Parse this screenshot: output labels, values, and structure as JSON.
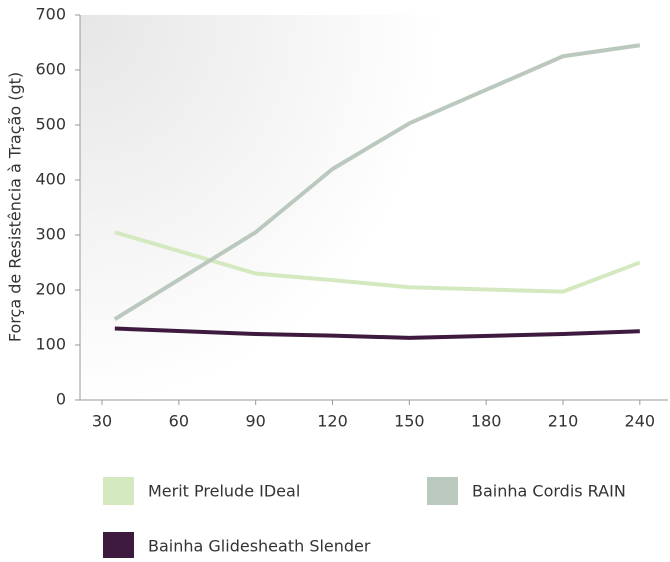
{
  "chart_data": {
    "type": "line",
    "y_label": "Força de Resistência à Tração (gt)",
    "x": [
      35,
      90,
      120,
      150,
      210,
      240
    ],
    "series": [
      {
        "name": "Merit Prelude IDeal",
        "color": "#d4e9c0",
        "values": [
          305,
          230,
          218,
          205,
          197,
          250
        ]
      },
      {
        "name": "Bainha Cordis RAIN",
        "color": "#bac8bd",
        "values": [
          147,
          305,
          420,
          503,
          625,
          645
        ]
      },
      {
        "name": "Bainha Glidesheath Slender",
        "color": "#3d1a3e",
        "values": [
          130,
          120,
          117,
          113,
          120,
          125
        ]
      }
    ],
    "xlim": [
      21.4,
      251
    ],
    "xticks": [
      30,
      60,
      90,
      120,
      150,
      180,
      210,
      240
    ],
    "ylim": [
      0,
      700
    ],
    "yticks": [
      0,
      100,
      200,
      300,
      400,
      500,
      600,
      700
    ]
  }
}
